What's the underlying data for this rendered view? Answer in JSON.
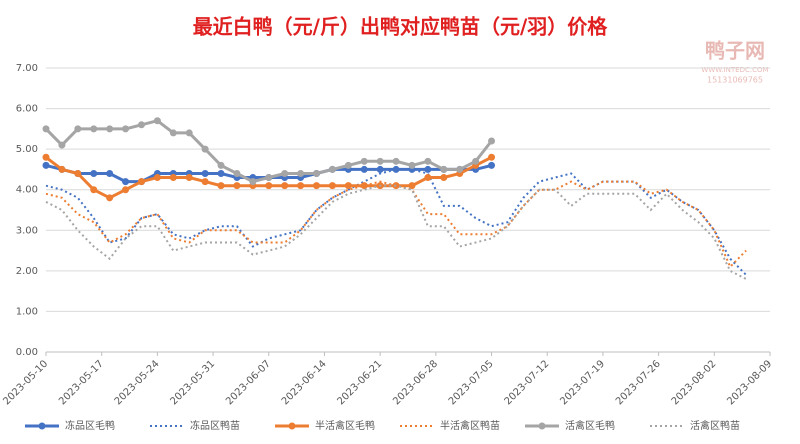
{
  "chart_data": {
    "type": "line",
    "title": "最近白鸭（元/斤）出鸭对应鸭苗（元/羽）价格",
    "x": [
      "2023-05-10",
      "2023-05-12",
      "2023-05-14",
      "2023-05-16",
      "2023-05-18",
      "2023-05-20",
      "2023-05-22",
      "2023-05-24",
      "2023-05-26",
      "2023-05-28",
      "2023-05-30",
      "2023-06-01",
      "2023-06-03",
      "2023-06-05",
      "2023-06-07",
      "2023-06-09",
      "2023-06-11",
      "2023-06-13",
      "2023-06-15",
      "2023-06-17",
      "2023-06-19",
      "2023-06-21",
      "2023-06-23",
      "2023-06-25",
      "2023-06-27",
      "2023-06-29",
      "2023-07-01",
      "2023-07-03",
      "2023-07-05",
      "2023-07-07",
      "2023-07-09",
      "2023-07-11",
      "2023-07-13",
      "2023-07-15",
      "2023-07-17",
      "2023-07-19",
      "2023-07-21",
      "2023-07-23",
      "2023-07-25",
      "2023-07-27",
      "2023-07-29",
      "2023-07-31",
      "2023-08-02",
      "2023-08-04",
      "2023-08-06"
    ],
    "series": [
      {
        "name": "冻品区毛鸭",
        "color": "#4472c4",
        "line_style": "solid",
        "markers": true,
        "values": [
          4.6,
          4.5,
          4.4,
          4.4,
          4.4,
          4.2,
          4.2,
          4.4,
          4.4,
          4.4,
          4.4,
          4.4,
          4.3,
          4.3,
          4.3,
          4.3,
          4.3,
          4.4,
          4.5,
          4.5,
          4.5,
          4.5,
          4.5,
          4.5,
          4.5,
          4.5,
          4.5,
          4.5,
          4.6,
          null,
          null,
          null,
          null,
          null,
          null,
          null,
          null,
          null,
          null,
          null,
          null,
          null,
          null,
          null,
          null
        ]
      },
      {
        "name": "冻品区鸭苗",
        "color": "#4472c4",
        "line_style": "dotted",
        "markers": false,
        "values": [
          4.1,
          4.0,
          3.8,
          3.3,
          2.7,
          2.8,
          3.3,
          3.4,
          2.9,
          2.8,
          3.0,
          3.1,
          3.1,
          2.6,
          2.8,
          2.9,
          3.0,
          3.5,
          3.8,
          4.0,
          4.2,
          4.4,
          4.5,
          4.5,
          4.4,
          3.6,
          3.6,
          3.3,
          3.1,
          3.2,
          3.8,
          4.2,
          4.3,
          4.4,
          4.0,
          4.2,
          4.2,
          4.2,
          3.8,
          4.0,
          3.7,
          3.5,
          3.0,
          2.3,
          1.9
        ]
      },
      {
        "name": "半活禽区毛鸭",
        "color": "#ed7d31",
        "line_style": "solid",
        "markers": true,
        "values": [
          4.8,
          4.5,
          4.4,
          4.0,
          3.8,
          4.0,
          4.2,
          4.3,
          4.3,
          4.3,
          4.2,
          4.1,
          4.1,
          4.1,
          4.1,
          4.1,
          4.1,
          4.1,
          4.1,
          4.1,
          4.1,
          4.1,
          4.1,
          4.1,
          4.3,
          4.3,
          4.4,
          4.6,
          4.8,
          null,
          null,
          null,
          null,
          null,
          null,
          null,
          null,
          null,
          null,
          null,
          null,
          null,
          null,
          null,
          null
        ]
      },
      {
        "name": "半活禽区鸭苗",
        "color": "#ed7d31",
        "line_style": "dotted",
        "markers": false,
        "values": [
          3.9,
          3.8,
          3.4,
          3.2,
          2.7,
          2.9,
          3.3,
          3.4,
          2.8,
          2.7,
          3.0,
          3.0,
          3.0,
          2.7,
          2.7,
          2.7,
          3.0,
          3.5,
          3.8,
          4.0,
          4.1,
          4.2,
          4.1,
          4.0,
          3.4,
          3.4,
          2.9,
          2.9,
          2.9,
          3.1,
          3.6,
          4.0,
          4.0,
          4.2,
          4.0,
          4.2,
          4.2,
          4.2,
          3.9,
          4.0,
          3.7,
          3.5,
          3.0,
          2.1,
          2.5
        ]
      },
      {
        "name": "活禽区毛鸭",
        "color": "#a5a5a5",
        "line_style": "solid",
        "markers": true,
        "values": [
          5.5,
          5.1,
          5.5,
          5.5,
          5.5,
          5.5,
          5.6,
          5.7,
          5.4,
          5.4,
          5.0,
          4.6,
          4.4,
          4.2,
          4.3,
          4.4,
          4.4,
          4.4,
          4.5,
          4.6,
          4.7,
          4.7,
          4.7,
          4.6,
          4.7,
          4.5,
          4.5,
          4.7,
          5.2,
          null,
          null,
          null,
          null,
          null,
          null,
          null,
          null,
          null,
          null,
          null,
          null,
          null,
          null,
          null,
          null
        ]
      },
      {
        "name": "活禽区鸭苗",
        "color": "#a5a5a5",
        "line_style": "dotted",
        "markers": false,
        "values": [
          3.7,
          3.5,
          3.0,
          2.6,
          2.3,
          2.8,
          3.1,
          3.1,
          2.5,
          2.6,
          2.7,
          2.7,
          2.7,
          2.4,
          2.5,
          2.6,
          2.9,
          3.3,
          3.7,
          3.9,
          4.0,
          4.1,
          4.1,
          4.0,
          3.1,
          3.1,
          2.6,
          2.7,
          2.8,
          3.1,
          3.6,
          4.0,
          4.0,
          3.6,
          3.9,
          3.9,
          3.9,
          3.9,
          3.5,
          3.9,
          3.5,
          3.2,
          2.8,
          2.0,
          1.8
        ]
      }
    ],
    "xlim": [
      "2023-05-10",
      "2023-08-09"
    ],
    "xticks": [
      "2023-05-10",
      "2023-05-17",
      "2023-05-24",
      "2023-05-31",
      "2023-06-07",
      "2023-06-14",
      "2023-06-21",
      "2023-06-28",
      "2023-07-05",
      "2023-07-12",
      "2023-07-19",
      "2023-07-26",
      "2023-08-02",
      "2023-08-09"
    ],
    "ylim": [
      0,
      7
    ],
    "yticks": [
      {
        "value": 0,
        "label": "0.00"
      },
      {
        "value": 1,
        "label": "1.00"
      },
      {
        "value": 2,
        "label": "2.00"
      },
      {
        "value": 3,
        "label": "3.00"
      },
      {
        "value": 4,
        "label": "4.00"
      },
      {
        "value": 5,
        "label": "5.00"
      },
      {
        "value": 6,
        "label": "6.00"
      },
      {
        "value": 7,
        "label": "7.00"
      }
    ],
    "grid": true,
    "legend": "bottom"
  },
  "watermark": {
    "name": "鸭子网",
    "url": "WWW.INTEDC.COM",
    "phone": "15131069765"
  }
}
